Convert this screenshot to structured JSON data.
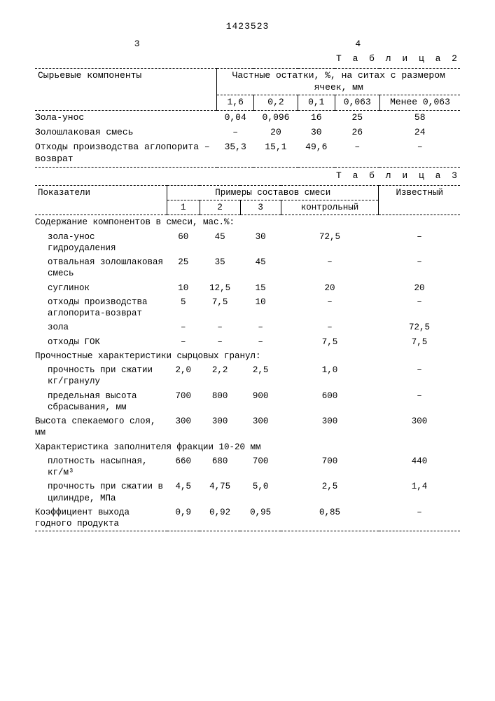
{
  "doc_number": "1423523",
  "page_left": "3",
  "page_right": "4",
  "table2": {
    "label": "Т а б л и ц а  2",
    "row_header_title": "Сырьевые компоненты",
    "group_header": "Частные остатки, %, на ситах с размером ячеек, мм",
    "cols": [
      "1,6",
      "0,2",
      "0,1",
      "0,063",
      "Менее 0,063"
    ],
    "rows": [
      {
        "label": "Зола-унос",
        "v": [
          "0,04",
          "0,096",
          "16",
          "25",
          "58"
        ]
      },
      {
        "label": "Золошлаковая смесь",
        "v": [
          "–",
          "20",
          "30",
          "26",
          "24"
        ]
      },
      {
        "label": "Отходы производства аглопорита – возврат",
        "v": [
          "35,3",
          "15,1",
          "49,6",
          "–",
          "–"
        ]
      }
    ]
  },
  "table3": {
    "label": "Т а б л и ц а  3",
    "row_header_title": "Показатели",
    "group_header": "Примеры составов смеси",
    "cols": [
      "1",
      "2",
      "3",
      "контрольный"
    ],
    "last_col": "Известный",
    "sections": [
      {
        "type": "header",
        "label": "Содержание компонентов в смеси, мас.%:"
      },
      {
        "type": "row",
        "indent": 1,
        "label": "зола-унос гидроудаления",
        "v": [
          "60",
          "45",
          "30",
          "72,5",
          "–"
        ]
      },
      {
        "type": "row",
        "indent": 1,
        "label": "отвальная золошлаковая смесь",
        "v": [
          "25",
          "35",
          "45",
          "–",
          "–"
        ]
      },
      {
        "type": "row",
        "indent": 1,
        "label": "суглинок",
        "v": [
          "10",
          "12,5",
          "15",
          "20",
          "20"
        ]
      },
      {
        "type": "row",
        "indent": 1,
        "label": "отходы производства аглопорита-возврат",
        "v": [
          "5",
          "7,5",
          "10",
          "–",
          "–"
        ]
      },
      {
        "type": "row",
        "indent": 1,
        "label": "зола",
        "v": [
          "–",
          "–",
          "–",
          "–",
          "72,5"
        ]
      },
      {
        "type": "row",
        "indent": 1,
        "label": "отходы ГОК",
        "v": [
          "–",
          "–",
          "–",
          "7,5",
          "7,5"
        ]
      },
      {
        "type": "header",
        "label": "Прочностные характеристики сырцовых гранул:"
      },
      {
        "type": "row",
        "indent": 1,
        "label": "прочность при сжатии кг/гранулу",
        "v": [
          "2,0",
          "2,2",
          "2,5",
          "1,0",
          "–"
        ]
      },
      {
        "type": "row",
        "indent": 1,
        "label": "предельная высота сбрасывания, мм",
        "v": [
          "700",
          "800",
          "900",
          "600",
          "–"
        ]
      },
      {
        "type": "row",
        "indent": 0,
        "label": "Высота спекаемого слоя, мм",
        "v": [
          "300",
          "300",
          "300",
          "300",
          "300"
        ]
      },
      {
        "type": "header",
        "label": "Характеристика заполнителя фракции 10-20 мм"
      },
      {
        "type": "row",
        "indent": 1,
        "label": "плотность насыпная, кг/м³",
        "v": [
          "660",
          "680",
          "700",
          "700",
          "440"
        ]
      },
      {
        "type": "row",
        "indent": 1,
        "label": "прочность при сжатии в цилиндре, МПа",
        "v": [
          "4,5",
          "4,75",
          "5,0",
          "2,5",
          "1,4"
        ]
      },
      {
        "type": "row",
        "indent": 0,
        "label": "Коэффициент выхода годного продукта",
        "v": [
          "0,9",
          "0,92",
          "0,95",
          "0,85",
          "–"
        ]
      }
    ]
  }
}
